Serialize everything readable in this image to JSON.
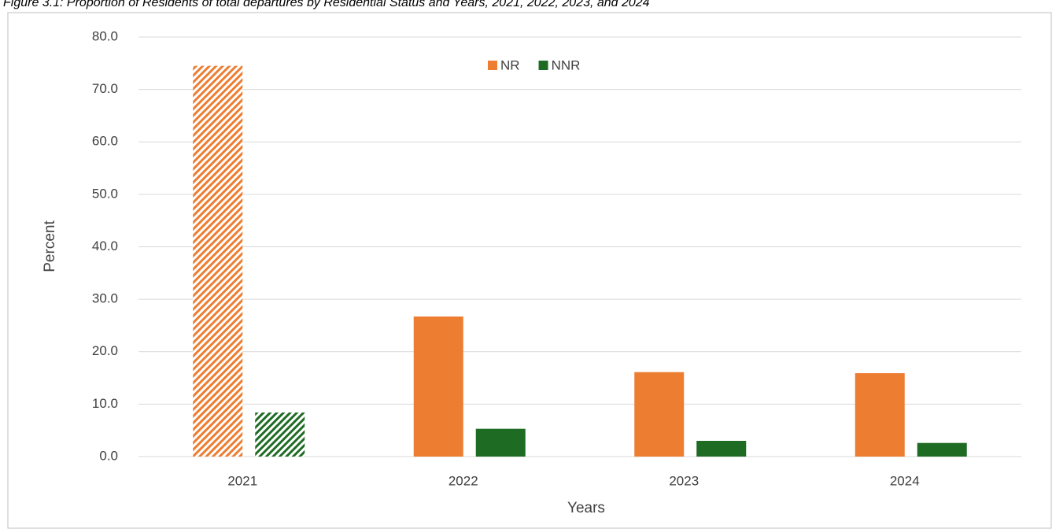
{
  "chart_data": {
    "type": "bar",
    "title": "Figure 3.1: Proportion of Residents of total departures by Residential Status and Years, 2021, 2022, 2023, and 2024",
    "x_label": "Years",
    "y_label": "Percent",
    "categories": [
      "2021",
      "2022",
      "2023",
      "2024"
    ],
    "series": [
      {
        "name": "NR",
        "color": "#ed7d31",
        "values": [
          74.5,
          26.7,
          16.1,
          15.9
        ]
      },
      {
        "name": "NNR",
        "color": "#1e6b24",
        "values": [
          8.4,
          5.3,
          3.0,
          2.6
        ]
      }
    ],
    "hatched": [
      true,
      false,
      false,
      false
    ],
    "ylim": [
      0,
      80
    ],
    "yticks": [
      {
        "value": 0,
        "label": "0.0"
      },
      {
        "value": 10,
        "label": "10.0"
      },
      {
        "value": 20,
        "label": "20.0"
      },
      {
        "value": 30,
        "label": "30.0"
      },
      {
        "value": 40,
        "label": "40.0"
      },
      {
        "value": 50,
        "label": "50.0"
      },
      {
        "value": 60,
        "label": "60.0"
      },
      {
        "value": 70,
        "label": "70.0"
      },
      {
        "value": 80,
        "label": "80.0"
      }
    ],
    "grid": true,
    "legend": "top"
  }
}
